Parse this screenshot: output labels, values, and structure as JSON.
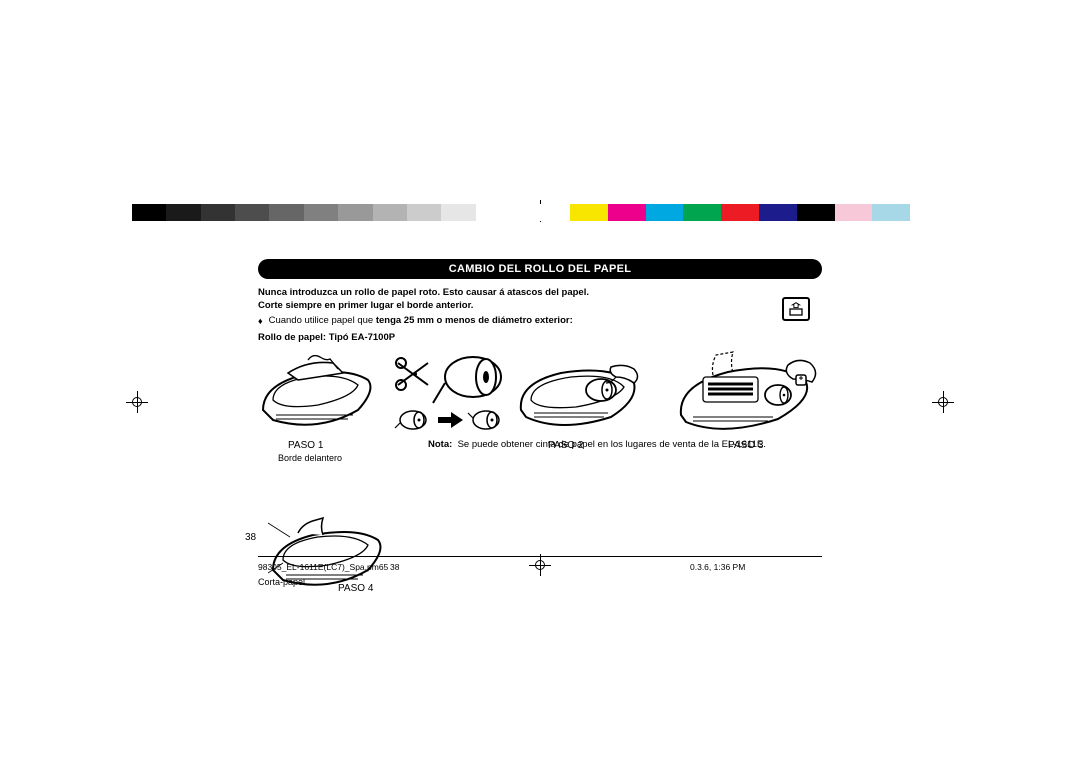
{
  "grayscale_bar": [
    "#000000",
    "#1a1a1a",
    "#333333",
    "#4d4d4d",
    "#666666",
    "#808080",
    "#999999",
    "#b3b3b3",
    "#cccccc",
    "#e6e6e6",
    "#ffffff"
  ],
  "color_bar": [
    "#f9e600",
    "#ec008c",
    "#00a8e1",
    "#00a550",
    "#ed1c24",
    "#1c1c8c",
    "#000000",
    "#f7c8d8",
    "#a6d8e7",
    "#ffffff"
  ],
  "title": "CAMBIO DEL ROLLO DEL PAPEL",
  "intro": {
    "line1": "Nunca introduzca un rollo de papel roto. Esto causar á atascos del papel.",
    "line2": "Corte siempre en primer lugar el borde anterior.",
    "bullet_pre": "Cuando utilice papel que ",
    "bullet_bold": "tenga 25 mm o menos de diámetro exterior:",
    "line3": "Rollo de papel: Tipó EA-7100P"
  },
  "paper_feed_icon": "↑",
  "captions": {
    "paso1": "PASO 1",
    "paso2": "PASO 2",
    "paso3": "PASO 3",
    "paso4": "PASO 4",
    "borde": "Borde delantero",
    "corta": "Corta-papel"
  },
  "note": {
    "label": "Nota:",
    "text": "Se puede obtener cinta de papel en los lugares de venta de la EL-1611E."
  },
  "page_number": "38",
  "footer": {
    "file": "98305_EL-1611E(LC7)_Spa.pm65",
    "pg": "38",
    "stamp": "0.3.6, 1:36 PM"
  }
}
